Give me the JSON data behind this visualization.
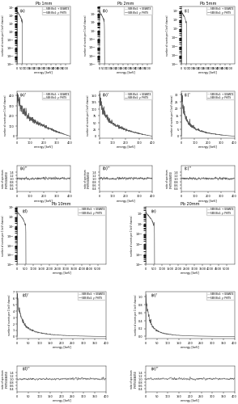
{
  "titles": [
    "Pb 1mm",
    "Pb 2mm",
    "Pb 5mm",
    "Pb 10mm",
    "Pb 20mm"
  ],
  "labels": [
    "(a)",
    "(b)",
    "(c)",
    "(d)",
    "(e)"
  ],
  "legend_line1": "SEB:Blo2: + GEANT4",
  "legend_line2": "SEB:Blo2: y: PHITS",
  "colors": {
    "geant4": "#b0b0b0",
    "phits": "#404040"
  },
  "bg_color": "#ffffff",
  "full_xlabel": "energy [keV]",
  "low_xlabel": "energy [keV]",
  "ratio_xlabel": "energy [keV]",
  "full_ylabel": "number of events per 1 keV channel",
  "low_ylabel": "number of events per 1 keV channel",
  "ratio_ylabel": "ratio of spectrum\n(PHITS/GEANT4)"
}
